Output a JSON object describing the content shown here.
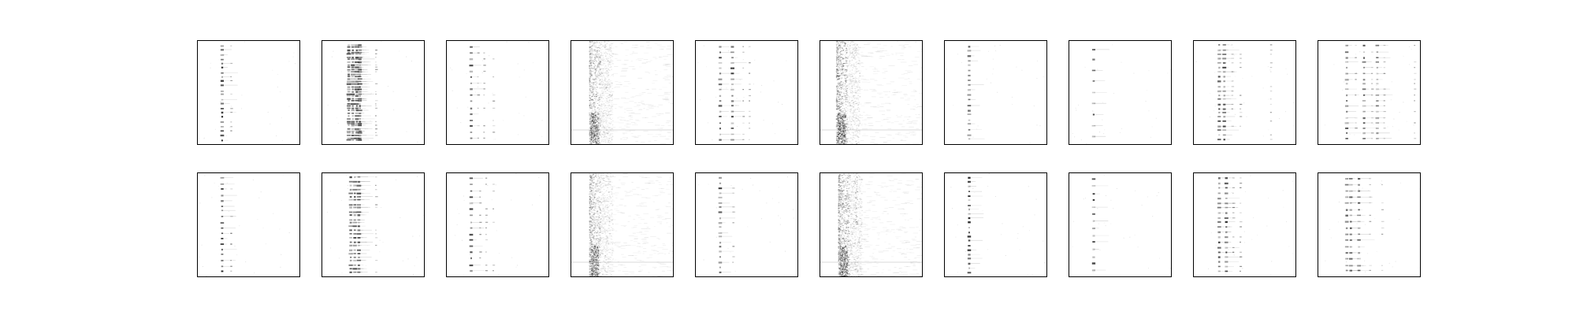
{
  "figure": {
    "background": "#ffffff",
    "frame_color": "#000000",
    "ink_color": "#000000"
  },
  "chart_data": {
    "type": "heatmap",
    "title": "",
    "xlabel": "",
    "ylabel": "",
    "grid": false,
    "legend": "none",
    "colormap": "gray_r",
    "layout": {
      "rows": 2,
      "columns": 10
    },
    "panels": [
      {
        "id": "r1c1",
        "row": 1,
        "col": 1,
        "style": "sparse",
        "columns": [
          0.24
        ],
        "extra_columns": [
          0.32
        ],
        "stripe_rows": 22,
        "intensity": 0.9
      },
      {
        "id": "r1c2",
        "row": 1,
        "col": 2,
        "style": "cluster",
        "columns": [
          0.26,
          0.3,
          0.34,
          0.37
        ],
        "extra_columns": [
          0.52
        ],
        "stripe_rows": 40,
        "intensity": 0.7
      },
      {
        "id": "r1c3",
        "row": 1,
        "col": 3,
        "style": "sparse",
        "columns": [
          0.24
        ],
        "extra_columns": [
          0.3,
          0.36,
          0.45
        ],
        "stripe_rows": 16,
        "intensity": 0.7
      },
      {
        "id": "r1c4",
        "row": 1,
        "col": 4,
        "style": "noise",
        "columns": [
          0.22
        ],
        "extra_columns": [],
        "stripe_rows": 60,
        "intensity": 0.35
      },
      {
        "id": "r1c5",
        "row": 1,
        "col": 5,
        "style": "sparse",
        "columns": [
          0.24,
          0.36
        ],
        "extra_columns": [
          0.46,
          0.52
        ],
        "stripe_rows": 18,
        "intensity": 0.75
      },
      {
        "id": "r1c6",
        "row": 1,
        "col": 6,
        "style": "noise",
        "columns": [
          0.2
        ],
        "extra_columns": [],
        "stripe_rows": 60,
        "intensity": 0.4
      },
      {
        "id": "r1c7",
        "row": 1,
        "col": 7,
        "style": "sparse",
        "columns": [
          0.24
        ],
        "extra_columns": [],
        "stripe_rows": 20,
        "intensity": 0.6
      },
      {
        "id": "r1c8",
        "row": 1,
        "col": 8,
        "style": "sparse",
        "columns": [
          0.24
        ],
        "extra_columns": [],
        "stripe_rows": 9,
        "intensity": 0.7
      },
      {
        "id": "r1c9",
        "row": 1,
        "col": 9,
        "style": "sparse",
        "columns": [
          0.25,
          0.3
        ],
        "extra_columns": [
          0.37,
          0.45,
          0.75
        ],
        "stripe_rows": 22,
        "intensity": 0.75
      },
      {
        "id": "r1c10",
        "row": 1,
        "col": 10,
        "style": "sparse",
        "columns": [
          0.28,
          0.45,
          0.58
        ],
        "extra_columns": [
          0.36,
          0.52,
          0.64,
          0.94
        ],
        "stripe_rows": 18,
        "intensity": 0.65
      },
      {
        "id": "r2c1",
        "row": 2,
        "col": 1,
        "style": "sparse",
        "columns": [
          0.24
        ],
        "extra_columns": [
          0.32
        ],
        "stripe_rows": 18,
        "intensity": 0.95
      },
      {
        "id": "r2c2",
        "row": 2,
        "col": 2,
        "style": "cluster",
        "columns": [
          0.28,
          0.32,
          0.36
        ],
        "extra_columns": [
          0.52
        ],
        "stripe_rows": 26,
        "intensity": 0.7
      },
      {
        "id": "r2c3",
        "row": 2,
        "col": 3,
        "style": "sparse",
        "columns": [
          0.24
        ],
        "extra_columns": [
          0.32,
          0.38,
          0.45
        ],
        "stripe_rows": 16,
        "intensity": 0.75
      },
      {
        "id": "r2c4",
        "row": 2,
        "col": 4,
        "style": "noise",
        "columns": [
          0.22
        ],
        "extra_columns": [],
        "stripe_rows": 60,
        "intensity": 0.35
      },
      {
        "id": "r2c5",
        "row": 2,
        "col": 5,
        "style": "sparse",
        "columns": [
          0.24
        ],
        "extra_columns": [
          0.36
        ],
        "stripe_rows": 20,
        "intensity": 0.75
      },
      {
        "id": "r2c6",
        "row": 2,
        "col": 6,
        "style": "noise",
        "columns": [
          0.22
        ],
        "extra_columns": [
          0.34
        ],
        "stripe_rows": 60,
        "intensity": 0.4
      },
      {
        "id": "r2c7",
        "row": 2,
        "col": 7,
        "style": "sparse",
        "columns": [
          0.24
        ],
        "extra_columns": [],
        "stripe_rows": 22,
        "intensity": 0.85
      },
      {
        "id": "r2c8",
        "row": 2,
        "col": 8,
        "style": "sparse",
        "columns": [
          0.24
        ],
        "extra_columns": [],
        "stripe_rows": 14,
        "intensity": 0.8
      },
      {
        "id": "r2c9",
        "row": 2,
        "col": 9,
        "style": "sparse",
        "columns": [
          0.25,
          0.32
        ],
        "extra_columns": [
          0.38,
          0.45
        ],
        "stripe_rows": 20,
        "intensity": 0.8
      },
      {
        "id": "r2c10",
        "row": 2,
        "col": 10,
        "style": "sparse",
        "columns": [
          0.28,
          0.32,
          0.4
        ],
        "extra_columns": [
          0.5,
          0.62
        ],
        "stripe_rows": 16,
        "intensity": 0.65
      }
    ]
  }
}
